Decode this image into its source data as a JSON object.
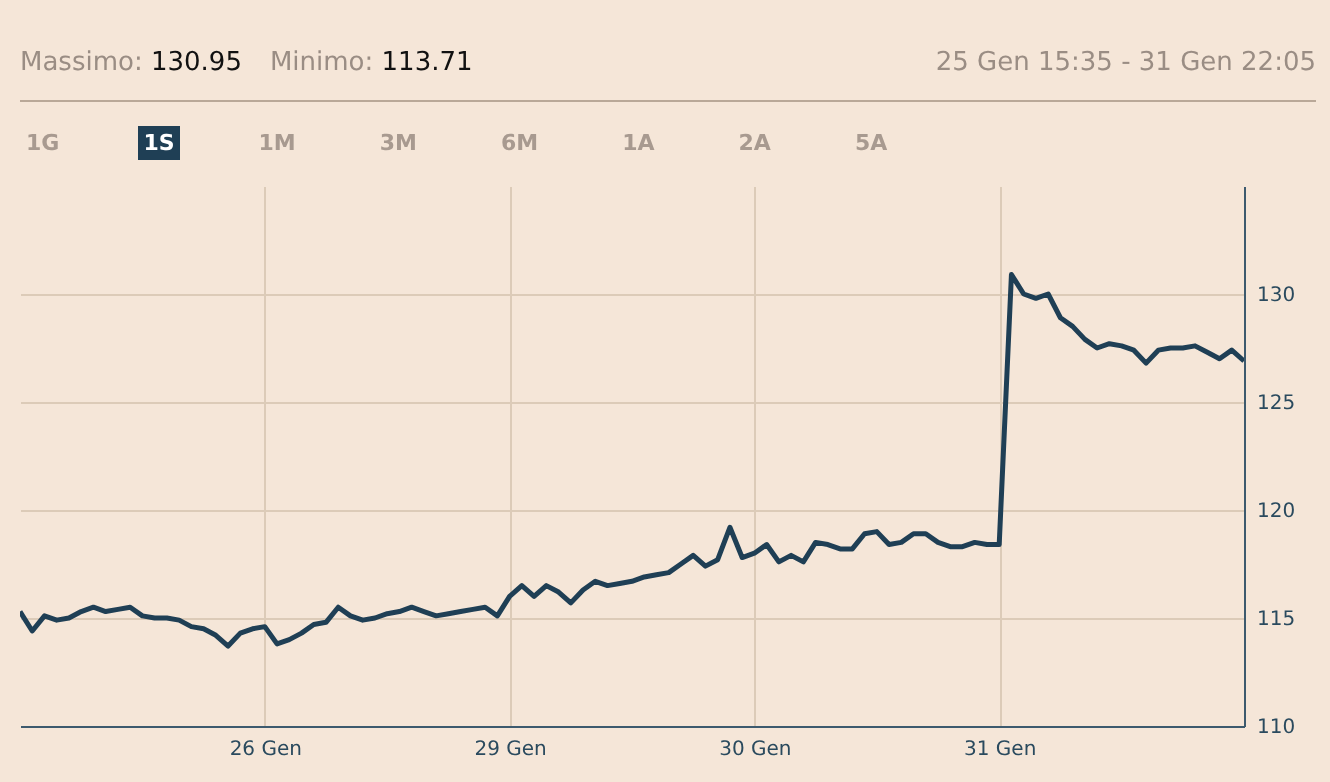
{
  "chart_data": {
    "type": "line",
    "annotations": [
      "Massimo: 130.95",
      "Minimo: 113.71",
      "25 Gen 15:35 - 31 Gen 22:05",
      "1G",
      "1S",
      "1M",
      "3M",
      "6M",
      "1A",
      "2A",
      "5A"
    ],
    "categories": [
      null,
      null,
      null,
      null,
      null,
      null,
      null,
      null,
      null,
      null,
      null,
      null,
      null,
      null,
      null,
      null,
      null,
      null,
      null,
      null,
      "26 Gen",
      null,
      null,
      null,
      null,
      null,
      null,
      null,
      null,
      null,
      null,
      null,
      null,
      null,
      null,
      null,
      null,
      null,
      null,
      null,
      "29 Gen",
      null,
      null,
      null,
      null,
      null,
      null,
      null,
      null,
      null,
      null,
      null,
      null,
      null,
      null,
      null,
      null,
      null,
      null,
      null,
      "30 Gen",
      null,
      null,
      null,
      null,
      null,
      null,
      null,
      null,
      null,
      null,
      null,
      null,
      null,
      null,
      null,
      null,
      null,
      null,
      null,
      "31 Gen",
      null,
      null,
      null,
      null,
      null,
      null,
      null,
      null,
      null,
      null,
      null,
      null,
      null,
      null,
      null,
      null,
      null,
      null,
      null,
      null
    ],
    "series": [
      {
        "color": "#1f3f55",
        "values": [
          115.3,
          114.4,
          115.1,
          114.9,
          115.0,
          115.3,
          115.5,
          115.3,
          115.4,
          115.5,
          115.1,
          115.0,
          115.0,
          114.9,
          114.6,
          114.5,
          114.2,
          113.7,
          114.3,
          114.5,
          114.6,
          113.8,
          114.0,
          114.3,
          114.7,
          114.8,
          115.5,
          115.1,
          114.9,
          115.0,
          115.2,
          115.3,
          115.5,
          115.3,
          115.1,
          115.2,
          115.3,
          115.4,
          115.5,
          115.1,
          116.0,
          116.5,
          116.0,
          116.5,
          116.2,
          115.7,
          116.3,
          116.7,
          116.5,
          116.6,
          116.7,
          116.9,
          117.0,
          117.1,
          117.5,
          117.9,
          117.4,
          117.7,
          119.2,
          117.8,
          118.0,
          118.4,
          117.6,
          117.9,
          117.6,
          118.5,
          118.4,
          118.2,
          118.2,
          118.9,
          119.0,
          118.4,
          118.5,
          118.9,
          118.9,
          118.5,
          118.3,
          118.3,
          118.5,
          118.4,
          118.4,
          130.9,
          130.0,
          129.8,
          130.0,
          128.9,
          128.5,
          127.9,
          127.5,
          127.7,
          127.6,
          127.4,
          126.8,
          127.4,
          127.5,
          127.5,
          127.6,
          127.3,
          127.0,
          127.4,
          126.9
        ]
      }
    ],
    "ylim": [
      110,
      135
    ],
    "yticks": [
      110,
      115,
      120,
      125,
      130
    ],
    "grid": true
  }
}
